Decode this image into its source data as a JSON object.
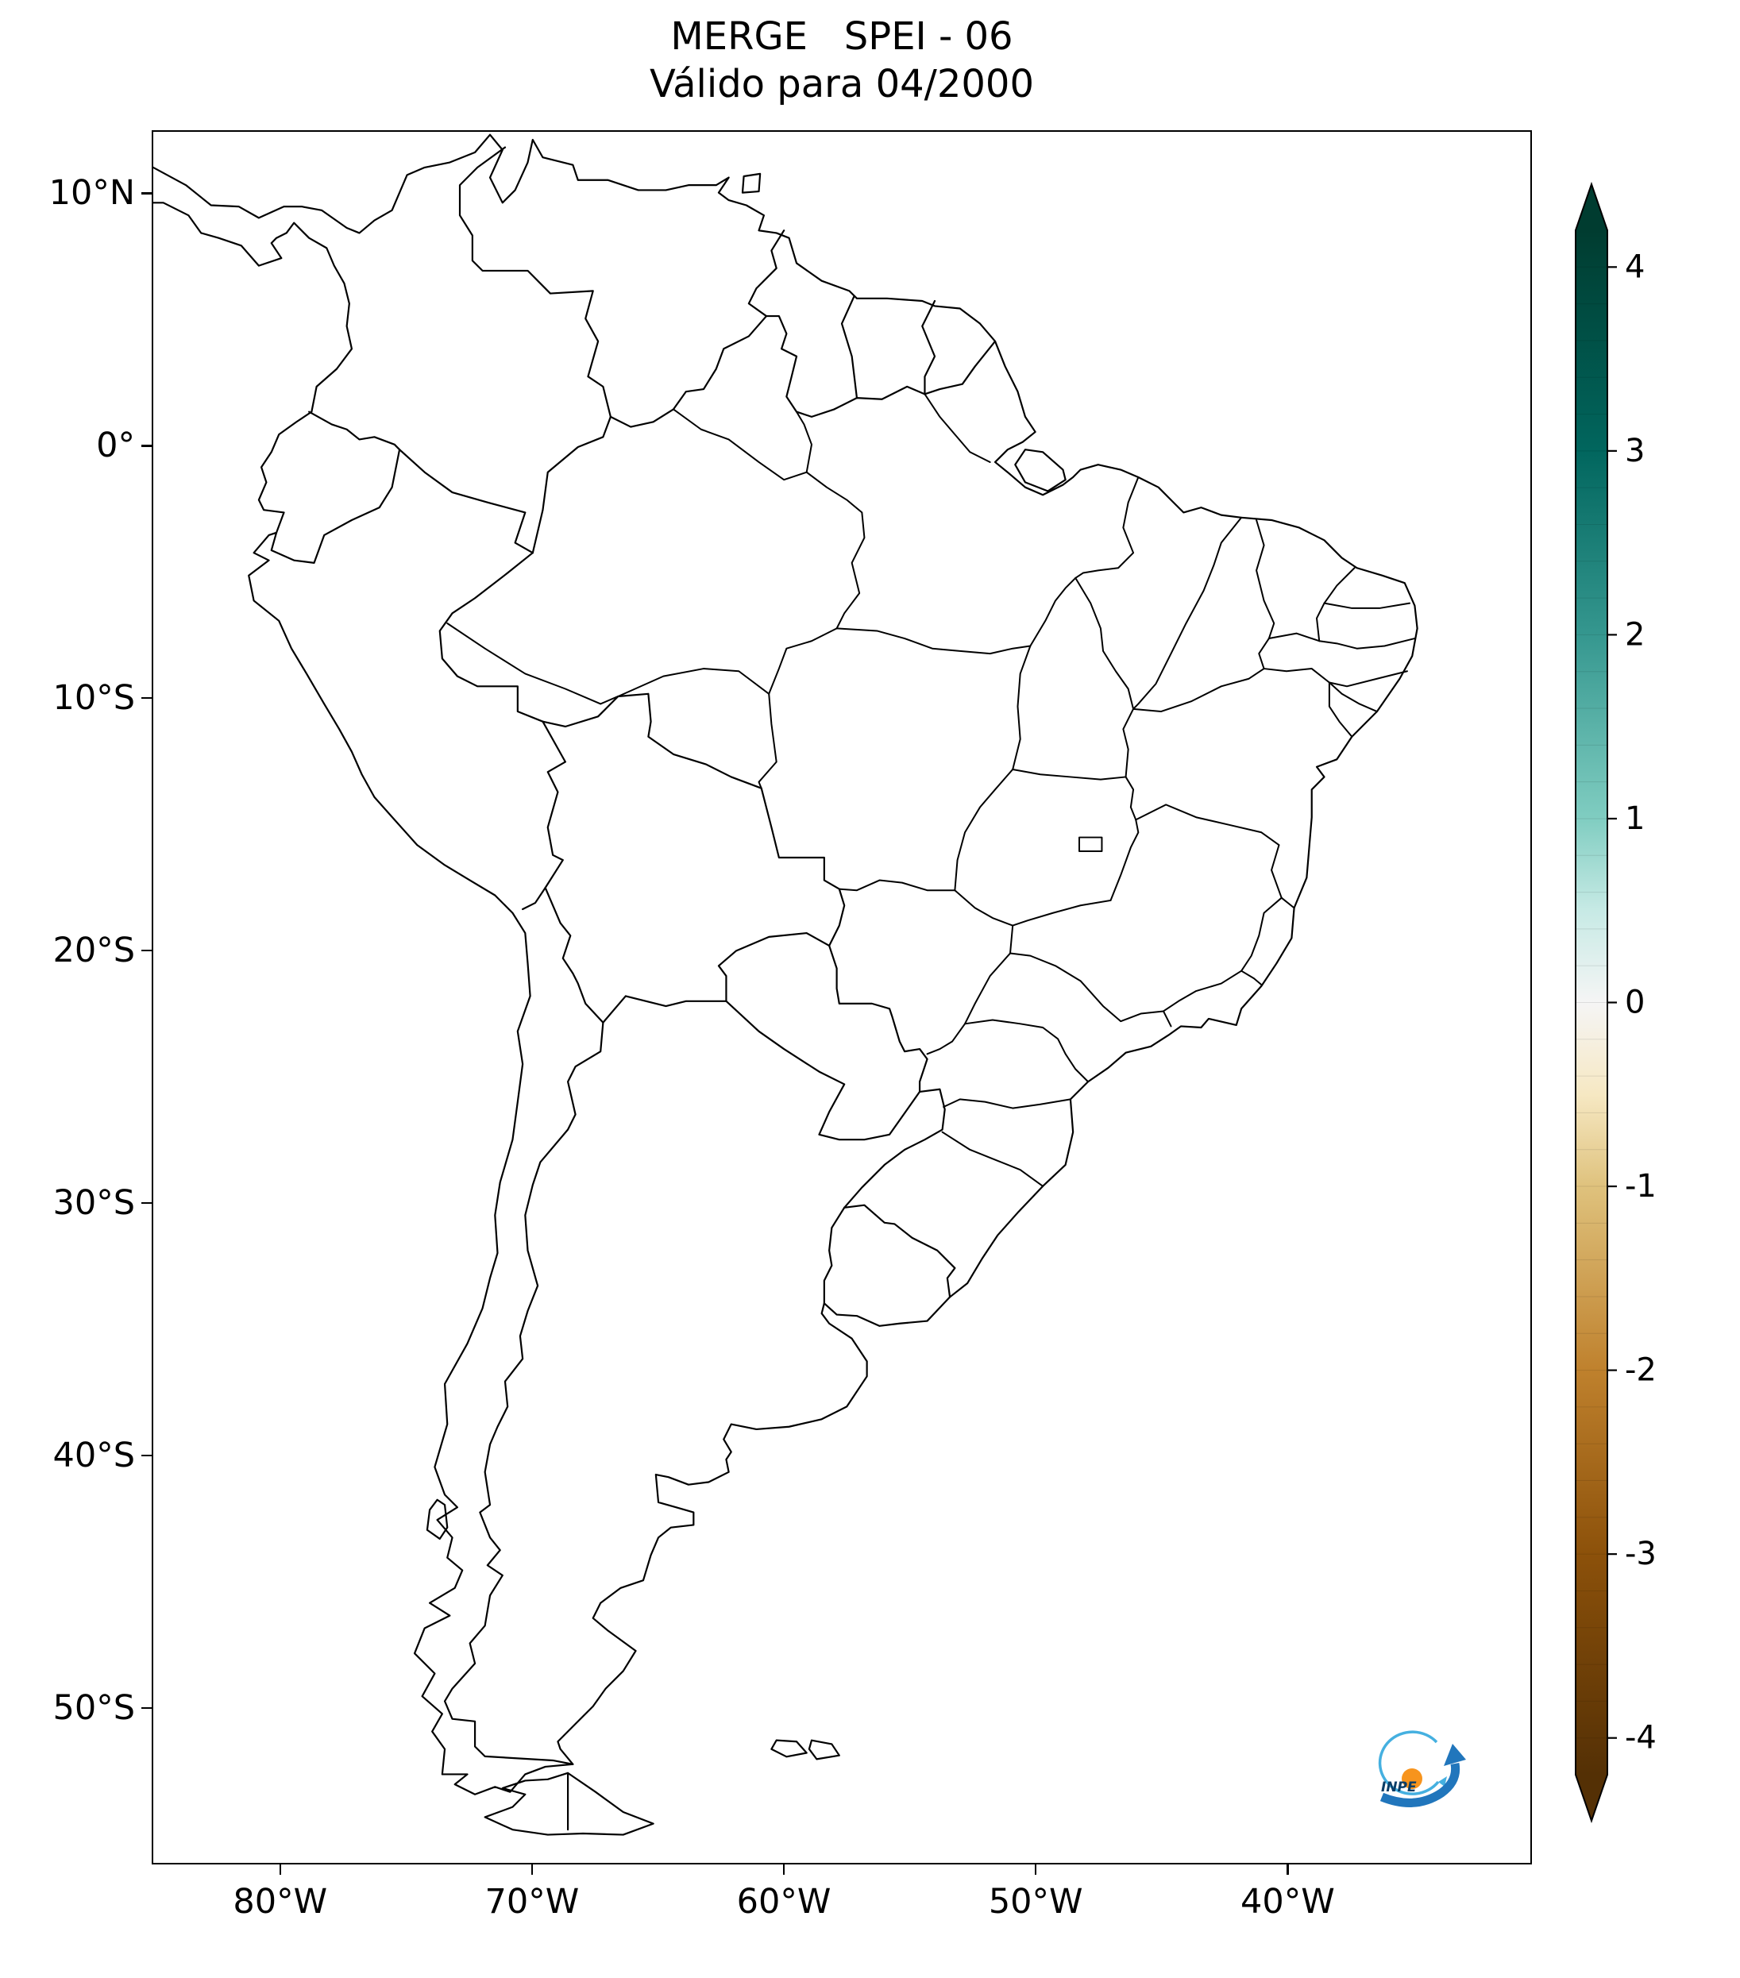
{
  "title": {
    "line1": "MERGE   SPEI - 06",
    "line2": "Válido para 04/2000"
  },
  "axes": {
    "y_ticks": [
      {
        "label": "10°N",
        "value": 10
      },
      {
        "label": "0°",
        "value": 0
      },
      {
        "label": "10°S",
        "value": -10
      },
      {
        "label": "20°S",
        "value": -20
      },
      {
        "label": "30°S",
        "value": -30
      },
      {
        "label": "40°S",
        "value": -40
      },
      {
        "label": "50°S",
        "value": -50
      }
    ],
    "x_ticks": [
      {
        "label": "80°W",
        "value": -80
      },
      {
        "label": "70°W",
        "value": -70
      },
      {
        "label": "60°W",
        "value": -60
      },
      {
        "label": "50°W",
        "value": -50
      },
      {
        "label": "40°W",
        "value": -40
      }
    ]
  },
  "colorbar": {
    "colormap": "BrBG",
    "range": [
      -4.2,
      4.2
    ],
    "ticks": [
      {
        "label": "4",
        "value": 4
      },
      {
        "label": "3",
        "value": 3
      },
      {
        "label": "2",
        "value": 2
      },
      {
        "label": "1",
        "value": 1
      },
      {
        "label": "0",
        "value": 0
      },
      {
        "label": "-1",
        "value": -1
      },
      {
        "label": "-2",
        "value": -2
      },
      {
        "label": "-3",
        "value": -3
      },
      {
        "label": "-4",
        "value": -4
      }
    ],
    "stops": [
      {
        "value": 4.2,
        "color": "#003c30"
      },
      {
        "value": 3,
        "color": "#01665e"
      },
      {
        "value": 2,
        "color": "#35978f"
      },
      {
        "value": 1,
        "color": "#80cdc1"
      },
      {
        "value": 0.5,
        "color": "#c7eae5"
      },
      {
        "value": 0,
        "color": "#f5f5f5"
      },
      {
        "value": -0.5,
        "color": "#f6e8c3"
      },
      {
        "value": -1,
        "color": "#dfc27d"
      },
      {
        "value": -2,
        "color": "#bf812d"
      },
      {
        "value": -3,
        "color": "#8c510a"
      },
      {
        "value": -4.2,
        "color": "#543005"
      }
    ],
    "arrow_top_color": "#003c30",
    "arrow_bottom_color": "#543005"
  },
  "map": {
    "region": "South America with country and Brazilian state boundaries",
    "line_color": "#000000",
    "background": "#ffffff"
  },
  "logo": {
    "text": "INPE",
    "orange": "#f7941d",
    "light_blue": "#45b0e0",
    "blue": "#2176bc",
    "navy": "#0b3d66"
  }
}
